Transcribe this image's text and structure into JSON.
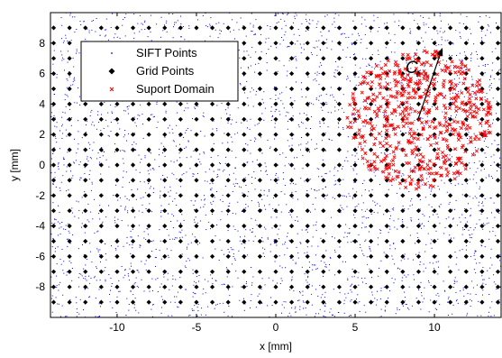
{
  "chart_data": {
    "type": "scatter",
    "title": "",
    "xlabel": "x [mm]",
    "ylabel": "y [mm]",
    "xlim": [
      -14.2,
      14.2
    ],
    "ylim": [
      -10,
      10
    ],
    "xticks": [
      -10,
      -5,
      0,
      5,
      10
    ],
    "xtick_labels": [
      "-10",
      "-5",
      "0",
      "5",
      "10"
    ],
    "yticks": [
      8,
      6,
      4,
      2,
      0,
      -2,
      -4,
      -6,
      -8
    ],
    "ytick_labels": [
      "8",
      "6",
      "4",
      "2",
      "0",
      "-2",
      "-4",
      "-6",
      "-8"
    ],
    "grid": false,
    "legend": {
      "position": "upper-left",
      "entries": [
        {
          "label": "SIFT Points",
          "marker": "dot",
          "color": "#0000ff"
        },
        {
          "label": "Grid Points",
          "marker": "diamond",
          "color": "#000000"
        },
        {
          "label": "Suport Domain",
          "marker": "x",
          "color": "#ff0000"
        }
      ]
    },
    "series": [
      {
        "name": "SIFT Points",
        "marker": "dot",
        "color": "#0000ff",
        "distribution": "uniform-random",
        "count": 3000,
        "x_range": [
          -14.2,
          14.2
        ],
        "y_range": [
          -10,
          10
        ]
      },
      {
        "name": "Grid Points",
        "marker": "diamond",
        "color": "#000000",
        "x_start": -14,
        "x_end": 14,
        "x_step": 1,
        "y_start": -9,
        "y_end": 9,
        "y_step": 1
      },
      {
        "name": "Suport Domain",
        "marker": "x",
        "color": "#ff0000",
        "distribution": "random-in-circle",
        "count": 560,
        "center": [
          9.1,
          3.0
        ],
        "radius": 4.6
      }
    ],
    "annotation": {
      "text": "C",
      "subscript": "r",
      "arrow_from": [
        9.0,
        3.1
      ],
      "arrow_to": [
        10.5,
        7.7
      ]
    }
  }
}
